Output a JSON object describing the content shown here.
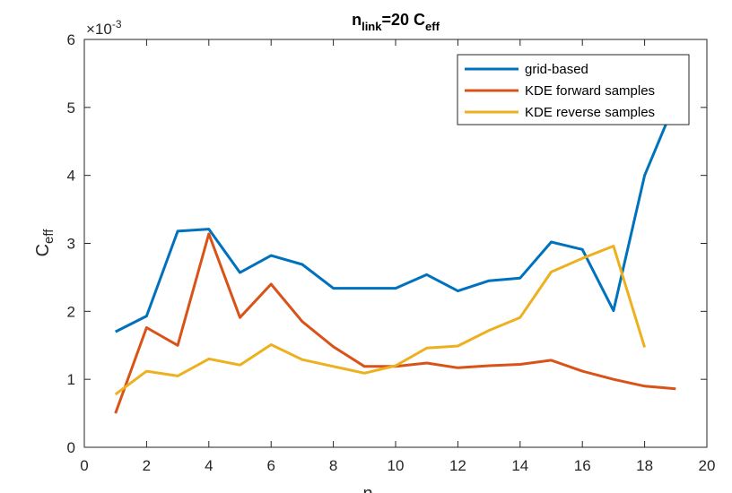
{
  "chart_data": {
    "type": "line",
    "title": {
      "base": "n",
      "sub": "link",
      "middle": "=20 C",
      "sub2": "eff"
    },
    "xlabel": "n",
    "ylabel": {
      "base": "C",
      "sub": "eff"
    },
    "y_exponent": {
      "prefix": "×10",
      "power": "-3"
    },
    "xlim": [
      0,
      20
    ],
    "ylim": [
      0,
      6
    ],
    "xticks": [
      0,
      2,
      4,
      6,
      8,
      10,
      12,
      14,
      16,
      18,
      20
    ],
    "yticks": [
      0,
      1,
      2,
      3,
      4,
      5,
      6
    ],
    "grid": false,
    "legend_position": "top-right",
    "series": [
      {
        "name": "grid-based",
        "color": "#0072BD",
        "x": [
          1,
          2,
          3,
          4,
          5,
          6,
          7,
          8,
          9,
          10,
          11,
          12,
          13,
          14,
          15,
          16,
          17,
          18,
          19
        ],
        "y": [
          1.7,
          1.93,
          3.18,
          3.21,
          2.57,
          2.82,
          2.69,
          2.34,
          2.34,
          2.34,
          2.54,
          2.3,
          2.45,
          2.49,
          3.02,
          2.91,
          2.01,
          4.0,
          5.1
        ]
      },
      {
        "name": "KDE forward samples",
        "color": "#D95319",
        "x": [
          1,
          2,
          3,
          4,
          5,
          6,
          7,
          8,
          9,
          10,
          11,
          12,
          13,
          14,
          15,
          16,
          17,
          18,
          19
        ],
        "y": [
          0.5,
          1.76,
          1.5,
          3.14,
          1.91,
          2.4,
          1.85,
          1.48,
          1.19,
          1.19,
          1.24,
          1.17,
          1.2,
          1.22,
          1.28,
          1.12,
          1.0,
          0.9,
          0.86
        ]
      },
      {
        "name": "KDE reverse samples",
        "color": "#EDB120",
        "x": [
          1,
          2,
          3,
          4,
          5,
          6,
          7,
          8,
          9,
          10,
          11,
          12,
          13,
          14,
          15,
          16,
          17,
          18
        ],
        "y": [
          0.78,
          1.12,
          1.05,
          1.3,
          1.21,
          1.51,
          1.29,
          1.19,
          1.09,
          1.2,
          1.46,
          1.49,
          1.72,
          1.91,
          2.58,
          2.78,
          2.96,
          1.47
        ]
      }
    ]
  }
}
